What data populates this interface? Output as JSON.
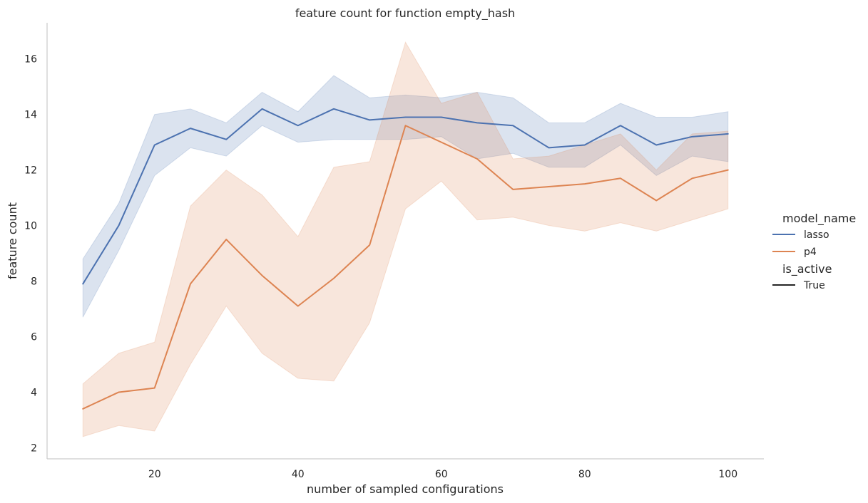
{
  "chart_data": {
    "type": "line",
    "title": "feature count for function empty_hash",
    "xlabel": "number of sampled configurations",
    "ylabel": "feature count",
    "xlim": [
      5,
      105
    ],
    "ylim": [
      1.6,
      17.3
    ],
    "xticks": [
      20,
      40,
      60,
      80,
      100
    ],
    "yticks": [
      2,
      4,
      6,
      8,
      10,
      12,
      14,
      16
    ],
    "grid": false,
    "legend": {
      "placement": "right",
      "hue_title": "model_name",
      "style_title": "is_active",
      "style_entries": [
        {
          "label": "True",
          "color": "#262626"
        }
      ]
    },
    "x": [
      10,
      15,
      20,
      25,
      30,
      35,
      40,
      45,
      50,
      55,
      60,
      65,
      70,
      75,
      80,
      85,
      90,
      95,
      100
    ],
    "series": [
      {
        "name": "lasso",
        "color": "#4c72b0",
        "values": [
          7.9,
          10.0,
          12.9,
          13.5,
          13.1,
          14.2,
          13.6,
          14.2,
          13.8,
          13.9,
          13.9,
          13.7,
          13.6,
          12.8,
          12.9,
          13.6,
          12.9,
          13.2,
          13.3
        ],
        "ci_lower": [
          6.7,
          9.1,
          11.8,
          12.8,
          12.5,
          13.6,
          13.0,
          13.1,
          13.1,
          13.1,
          13.2,
          12.4,
          12.6,
          12.1,
          12.1,
          12.9,
          11.8,
          12.5,
          12.3
        ],
        "ci_upper": [
          8.8,
          10.8,
          14.0,
          14.2,
          13.7,
          14.8,
          14.1,
          15.4,
          14.6,
          14.7,
          14.6,
          14.8,
          14.6,
          13.7,
          13.7,
          14.4,
          13.9,
          13.9,
          14.1
        ]
      },
      {
        "name": "p4",
        "color": "#dd8452",
        "values": [
          3.4,
          4.0,
          4.15,
          7.9,
          9.5,
          8.2,
          7.1,
          8.1,
          9.3,
          13.6,
          13.0,
          12.4,
          11.3,
          11.4,
          11.5,
          11.7,
          10.9,
          11.7,
          12.0
        ],
        "ci_lower": [
          2.4,
          2.8,
          2.6,
          5.0,
          7.1,
          5.4,
          4.5,
          4.4,
          6.5,
          10.6,
          11.6,
          10.2,
          10.3,
          10.0,
          9.8,
          10.1,
          9.8,
          10.2,
          10.6
        ],
        "ci_upper": [
          4.3,
          5.4,
          5.8,
          10.7,
          12.0,
          11.1,
          9.6,
          12.1,
          12.3,
          16.6,
          14.4,
          14.8,
          12.4,
          12.5,
          12.9,
          13.3,
          12.0,
          13.3,
          13.4
        ]
      }
    ]
  }
}
